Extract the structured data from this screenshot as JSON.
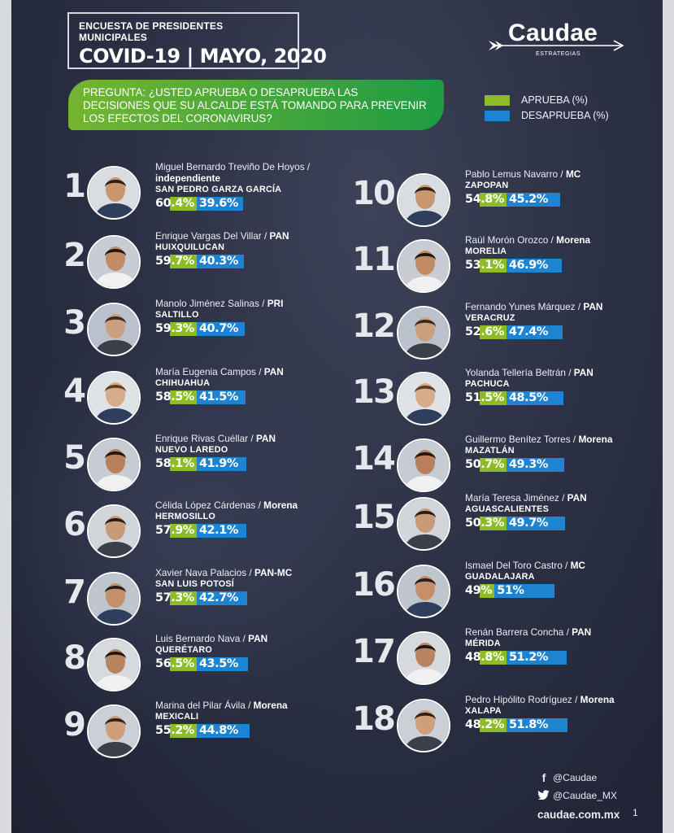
{
  "header": {
    "survey_title": "ENCUESTA DE PRESIDENTES MUNICIPALES",
    "main_title": "COVID-19 | MAYO, 2020",
    "brand_name": "Caudae",
    "brand_tag": "ESTRATEGIAS"
  },
  "question": "PREGUNTA: ¿USTED APRUEBA O DESAPRUEBA LAS DECISIONES QUE SU ALCALDE ESTÁ TOMANDO PARA PREVENIR LOS EFECTOS DEL CORONAVIRUS?",
  "legend": {
    "approve_label": "APRUEBA (%)",
    "disapprove_label": "DESAPRUEBA (%)",
    "approve_color": "#8cbc28",
    "disapprove_color": "#1e84d2"
  },
  "mayors": [
    {
      "rank": "1",
      "name": "Miguel Bernardo Treviño De Hoyos /",
      "party": "independiente",
      "city": "SAN PEDRO GARZA GARCÍA",
      "approve_text": "60.4%",
      "disapprove_text": "39.6%",
      "approve": 60.4,
      "disapprove": 39.6
    },
    {
      "rank": "2",
      "name": "Enrique Vargas Del Villar /",
      "party": "PAN",
      "city": "HUIXQUILUCAN",
      "approve_text": "59.7%",
      "disapprove_text": "40.3%",
      "approve": 59.7,
      "disapprove": 40.3
    },
    {
      "rank": "3",
      "name": "Manolo Jiménez Salinas /",
      "party": "PRI",
      "city": "SALTILLO",
      "approve_text": "59.3%",
      "disapprove_text": "40.7%",
      "approve": 59.3,
      "disapprove": 40.7
    },
    {
      "rank": "4",
      "name": "María Eugenia Campos /",
      "party": "PAN",
      "city": "CHIHUAHUA",
      "approve_text": "58.5%",
      "disapprove_text": "41.5%",
      "approve": 58.5,
      "disapprove": 41.5
    },
    {
      "rank": "5",
      "name": "Enrique Rivas Cuéllar /",
      "party": "PAN",
      "city": "NUEVO LAREDO",
      "approve_text": "58.1%",
      "disapprove_text": "41.9%",
      "approve": 58.1,
      "disapprove": 41.9
    },
    {
      "rank": "6",
      "name": "Célida López Cárdenas /",
      "party": "Morena",
      "city": "HERMOSILLO",
      "approve_text": "57.9%",
      "disapprove_text": "42.1%",
      "approve": 57.9,
      "disapprove": 42.1
    },
    {
      "rank": "7",
      "name": "Xavier Nava Palacios /",
      "party": "PAN-MC",
      "city": "SAN LUIS POTOSÍ",
      "approve_text": "57.3%",
      "disapprove_text": "42.7%",
      "approve": 57.3,
      "disapprove": 42.7
    },
    {
      "rank": "8",
      "name": "Luis Bernardo Nava /",
      "party": "PAN",
      "city": "QUERÉTARO",
      "approve_text": "56.5%",
      "disapprove_text": "43.5%",
      "approve": 56.5,
      "disapprove": 43.5
    },
    {
      "rank": "9",
      "name": "Marina del Pilar Ávila /",
      "party": "Morena",
      "city": "MEXICALI",
      "approve_text": "55.2%",
      "disapprove_text": "44.8%",
      "approve": 55.2,
      "disapprove": 44.8
    },
    {
      "rank": "10",
      "name": "Pablo Lemus Navarro /",
      "party": "MC",
      "city": "ZAPOPAN",
      "approve_text": "54.8%",
      "disapprove_text": "45.2%",
      "approve": 54.8,
      "disapprove": 45.2
    },
    {
      "rank": "11",
      "name": "Raúl Morón Orozco /",
      "party": "Morena",
      "city": "MORELIA",
      "approve_text": "53.1%",
      "disapprove_text": "46.9%",
      "approve": 53.1,
      "disapprove": 46.9
    },
    {
      "rank": "12",
      "name": "Fernando Yunes Márquez /",
      "party": "PAN",
      "city": "VERACRUZ",
      "approve_text": "52.6%",
      "disapprove_text": "47.4%",
      "approve": 52.6,
      "disapprove": 47.4
    },
    {
      "rank": "13",
      "name": "Yolanda Tellería Beltrán /",
      "party": "PAN",
      "city": "PACHUCA",
      "approve_text": "51.5%",
      "disapprove_text": "48.5%",
      "approve": 51.5,
      "disapprove": 48.5
    },
    {
      "rank": "14",
      "name": "Guillermo Benítez Torres /",
      "party": "Morena",
      "city": "MAZATLÁN",
      "approve_text": "50.7%",
      "disapprove_text": "49.3%",
      "approve": 50.7,
      "disapprove": 49.3
    },
    {
      "rank": "15",
      "name": "María Teresa Jiménez /",
      "party": "PAN",
      "city": "AGUASCALIENTES",
      "approve_text": "50.3%",
      "disapprove_text": "49.7%",
      "approve": 50.3,
      "disapprove": 49.7
    },
    {
      "rank": "16",
      "name": "Ismael Del Toro Castro /",
      "party": "MC",
      "city": "GUADALAJARA",
      "approve_text": "49%",
      "disapprove_text": "51%",
      "approve": 49,
      "disapprove": 51
    },
    {
      "rank": "17",
      "name": "Renán Barrera Concha /",
      "party": "PAN",
      "city": "MÉRIDA",
      "approve_text": "48.8%",
      "disapprove_text": "51.2%",
      "approve": 48.8,
      "disapprove": 51.2
    },
    {
      "rank": "18",
      "name": "Pedro Hipólito Rodríguez /",
      "party": "Morena",
      "city": "XALAPA",
      "approve_text": "48.2%",
      "disapprove_text": "51.8%",
      "approve": 48.2,
      "disapprove": 51.8
    }
  ],
  "footer": {
    "facebook": "@Caudae",
    "twitter": "@Caudae_MX",
    "website": "caudae.com.mx",
    "page_number": "1"
  }
}
